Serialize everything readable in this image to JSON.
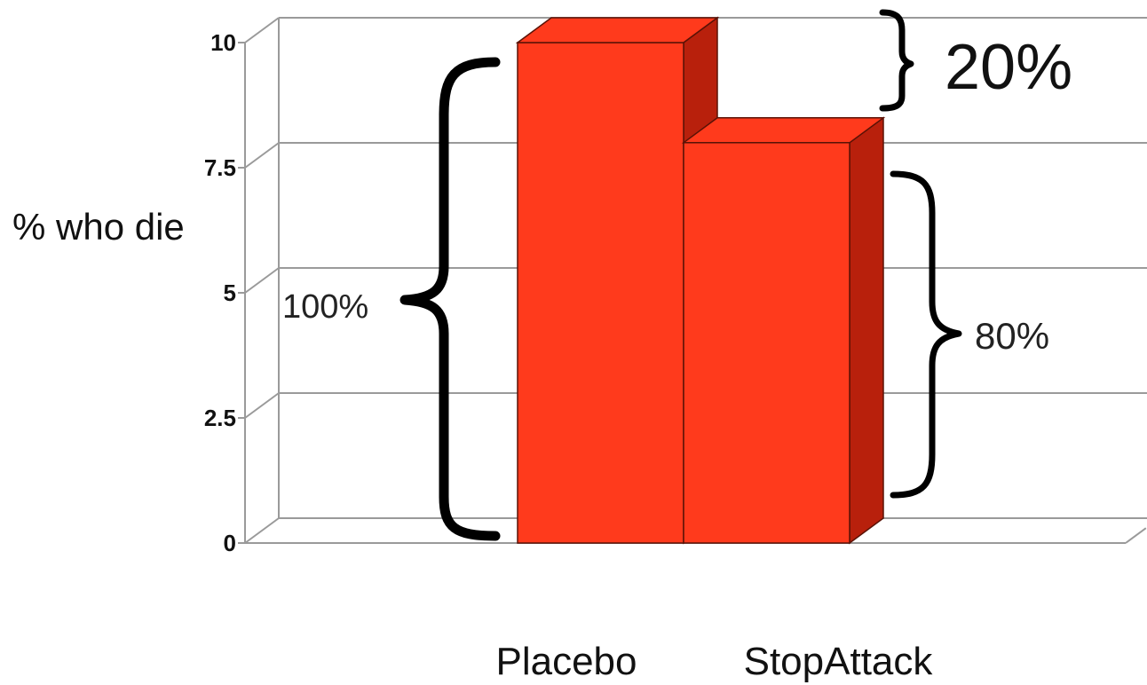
{
  "chart_data": {
    "type": "bar",
    "style": "3d",
    "categories": [
      "Placebo",
      "StopAttack"
    ],
    "values": [
      10,
      8
    ],
    "ylabel": "% who die",
    "xlabel": "",
    "ylim": [
      0,
      10
    ],
    "yticks": [
      "0",
      "2.5",
      "5",
      "7.5",
      "10"
    ],
    "ytick_values": [
      0,
      2.5,
      5,
      7.5,
      10
    ],
    "grid": true,
    "legend": "none",
    "bar_color": "#ff3a1c",
    "bar_side_color": "#b8200c",
    "annotations": {
      "difference": "20%",
      "placebo_total": "100%",
      "stopattack_total": "80%"
    }
  }
}
